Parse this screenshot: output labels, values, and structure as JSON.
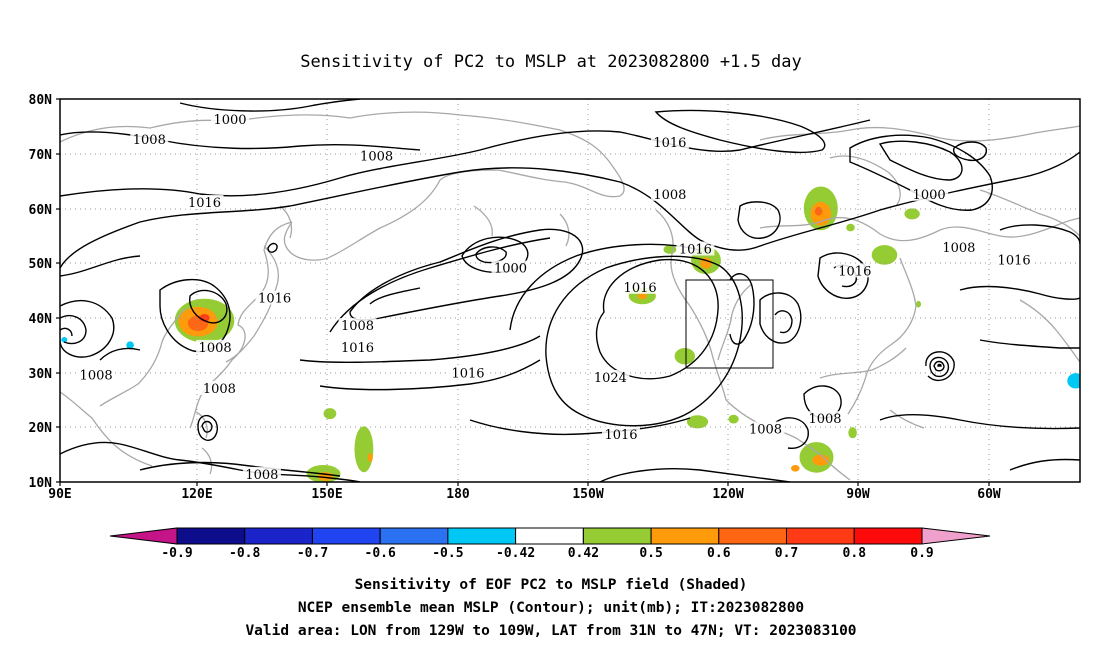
{
  "title": "Sensitivity of PC2 to MSLP at 2023082800 +1.5 day",
  "map": {
    "lat_ticks": [
      "80N",
      "70N",
      "60N",
      "50N",
      "40N",
      "30N",
      "20N",
      "10N"
    ],
    "lon_ticks": [
      "90E",
      "120E",
      "150E",
      "180",
      "150W",
      "120W",
      "90W",
      "60W"
    ],
    "lon_range": [
      90,
      330
    ],
    "lat_range": [
      10,
      80
    ],
    "grid": true,
    "grid_style": "dotted",
    "valid_box": {
      "lon": [
        231,
        251
      ],
      "lat": [
        31,
        47
      ]
    }
  },
  "contour_labels": [
    {
      "text": "1000",
      "lon": 130.0,
      "lat": 76.2
    },
    {
      "text": "1008",
      "lon": 111.0,
      "lat": 72.5
    },
    {
      "text": "1008",
      "lon": 164.5,
      "lat": 69.5
    },
    {
      "text": "1016",
      "lon": 233.5,
      "lat": 72.0
    },
    {
      "text": "1008",
      "lon": 233.5,
      "lat": 62.5
    },
    {
      "text": "1016",
      "lon": 124.0,
      "lat": 61.0
    },
    {
      "text": "1000",
      "lon": 294.5,
      "lat": 62.5
    },
    {
      "text": "1016",
      "lon": 239.5,
      "lat": 52.5
    },
    {
      "text": "1008",
      "lon": 301.5,
      "lat": 52.8
    },
    {
      "text": "1000",
      "lon": 196.0,
      "lat": 49.0
    },
    {
      "text": "1016",
      "lon": 314.5,
      "lat": 50.5
    },
    {
      "text": "1016",
      "lon": 277.0,
      "lat": 48.5
    },
    {
      "text": "1016",
      "lon": 226.5,
      "lat": 45.5
    },
    {
      "text": "1016",
      "lon": 140.5,
      "lat": 43.5
    },
    {
      "text": "1008",
      "lon": 160.0,
      "lat": 38.5
    },
    {
      "text": "1016",
      "lon": 160.0,
      "lat": 34.5
    },
    {
      "text": "1008",
      "lon": 126.5,
      "lat": 34.5
    },
    {
      "text": "1008",
      "lon": 98.5,
      "lat": 29.5
    },
    {
      "text": "1016",
      "lon": 186.0,
      "lat": 29.8
    },
    {
      "text": "1024",
      "lon": 219.5,
      "lat": 29.0
    },
    {
      "text": "1008",
      "lon": 127.5,
      "lat": 27.0
    },
    {
      "text": "1016",
      "lon": 222.0,
      "lat": 18.6
    },
    {
      "text": "1008",
      "lon": 256.0,
      "lat": 19.6
    },
    {
      "text": "1008",
      "lon": 270.0,
      "lat": 21.5
    },
    {
      "text": "1008",
      "lon": 137.5,
      "lat": 11.3
    }
  ],
  "shading": [
    {
      "lon": 124.0,
      "lat": 39.5,
      "rx": 7.0,
      "ry": 4.0,
      "level": "0.5"
    },
    {
      "lon": 122.5,
      "lat": 39.3,
      "rx": 4.6,
      "ry": 2.7,
      "level": "0.6"
    },
    {
      "lon": 122.5,
      "lat": 39.0,
      "rx": 2.4,
      "ry": 1.4,
      "level": "0.7"
    },
    {
      "lon": 124.0,
      "lat": 40.0,
      "rx": 1.2,
      "ry": 0.7,
      "level": "0.8"
    },
    {
      "lon": 152.0,
      "lat": 11.5,
      "rx": 4.0,
      "ry": 1.6,
      "level": "0.5"
    },
    {
      "lon": 152.5,
      "lat": 11.0,
      "rx": 1.8,
      "ry": 0.8,
      "level": "0.6"
    },
    {
      "lon": 161.5,
      "lat": 16.0,
      "rx": 2.2,
      "ry": 4.2,
      "level": "0.5"
    },
    {
      "lon": 163.0,
      "lat": 14.5,
      "rx": 0.6,
      "ry": 0.8,
      "level": "0.6"
    },
    {
      "lon": 153.5,
      "lat": 22.5,
      "rx": 1.5,
      "ry": 1.0,
      "level": "0.5"
    },
    {
      "lon": 227.0,
      "lat": 44.0,
      "rx": 3.2,
      "ry": 1.5,
      "level": "0.5"
    },
    {
      "lon": 227.0,
      "lat": 44.0,
      "rx": 1.0,
      "ry": 0.6,
      "level": "0.6"
    },
    {
      "lon": 242.0,
      "lat": 50.5,
      "rx": 3.5,
      "ry": 2.5,
      "level": "0.5"
    },
    {
      "lon": 242.0,
      "lat": 50.0,
      "rx": 1.4,
      "ry": 1.0,
      "level": "0.6"
    },
    {
      "lon": 237.0,
      "lat": 33.0,
      "rx": 2.4,
      "ry": 1.5,
      "level": "0.5"
    },
    {
      "lon": 233.5,
      "lat": 52.5,
      "rx": 1.5,
      "ry": 0.8,
      "level": "0.5"
    },
    {
      "lon": 240.0,
      "lat": 21.0,
      "rx": 2.5,
      "ry": 1.2,
      "level": "0.5"
    },
    {
      "lon": 248.5,
      "lat": 21.5,
      "rx": 1.2,
      "ry": 0.8,
      "level": "0.5"
    },
    {
      "lon": 269.0,
      "lat": 60.0,
      "rx": 4.0,
      "ry": 4.0,
      "level": "0.5"
    },
    {
      "lon": 269.0,
      "lat": 59.0,
      "rx": 2.4,
      "ry": 2.2,
      "level": "0.6"
    },
    {
      "lon": 268.5,
      "lat": 59.5,
      "rx": 0.9,
      "ry": 0.8,
      "level": "0.7"
    },
    {
      "lon": 276.0,
      "lat": 56.5,
      "rx": 1.0,
      "ry": 0.7,
      "level": "0.5"
    },
    {
      "lon": 284.0,
      "lat": 51.5,
      "rx": 3.0,
      "ry": 1.8,
      "level": "0.5"
    },
    {
      "lon": 290.5,
      "lat": 59.0,
      "rx": 1.8,
      "ry": 1.0,
      "level": "0.5"
    },
    {
      "lon": 292.0,
      "lat": 42.5,
      "rx": 0.6,
      "ry": 0.6,
      "level": "0.5"
    },
    {
      "lon": 268.0,
      "lat": 14.5,
      "rx": 4.0,
      "ry": 2.8,
      "level": "0.5"
    },
    {
      "lon": 269.0,
      "lat": 14.0,
      "rx": 2.0,
      "ry": 1.0,
      "level": "0.6"
    },
    {
      "lon": 263.0,
      "lat": 12.5,
      "rx": 1.0,
      "ry": 0.6,
      "level": "0.6"
    },
    {
      "lon": 276.5,
      "lat": 19.0,
      "rx": 1.0,
      "ry": 1.0,
      "level": "0.5"
    },
    {
      "lon": 106.5,
      "lat": 35.0,
      "rx": 0.9,
      "ry": 0.7,
      "level": "-0.5"
    },
    {
      "lon": 91.0,
      "lat": 36.0,
      "rx": 0.7,
      "ry": 0.5,
      "level": "-0.5"
    },
    {
      "lon": 329.0,
      "lat": 28.5,
      "rx": 2.0,
      "ry": 1.4,
      "level": "-0.5"
    }
  ],
  "colorbar": {
    "labels": [
      "-0.9",
      "-0.8",
      "-0.7",
      "-0.6",
      "-0.5",
      "-0.42",
      "0.42",
      "0.5",
      "0.6",
      "0.7",
      "0.8",
      "0.9"
    ],
    "colors": [
      "#0d0d8c",
      "#1a24c8",
      "#1f44f0",
      "#2b72f2",
      "#00c8f5",
      "#ffffff",
      "#96cc33",
      "#ff9a0a",
      "#ff6614",
      "#ff3a14",
      "#ff0a0a"
    ],
    "low_end_color": "#c41487",
    "high_end_color": "#f0a0cc",
    "level_colors": {
      "-0.5": "#00c8f5",
      "0.5": "#96cc33",
      "0.6": "#ff9a0a",
      "0.7": "#ff6614",
      "0.8": "#ff3a14"
    }
  },
  "caption": [
    "Sensitivity of EOF PC2 to MSLP field (Shaded)",
    "NCEP ensemble mean MSLP (Contour); unit(mb); IT:2023082800",
    "Valid area: LON from 129W to 109W, LAT from 31N to 47N; VT: 2023083100"
  ]
}
